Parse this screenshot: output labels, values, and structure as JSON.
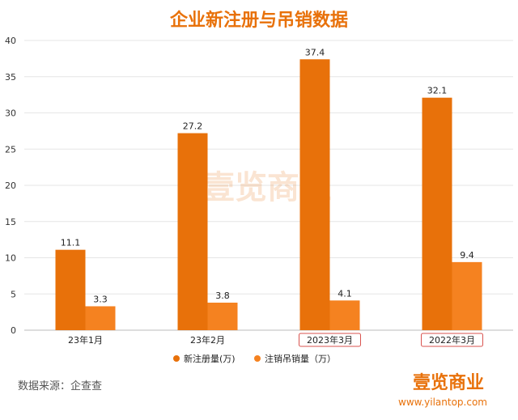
{
  "chart_data": {
    "type": "bar",
    "title": "企业新注册与吊销数据",
    "categories": [
      "23年1月",
      "23年2月",
      "2023年3月",
      "2022年3月"
    ],
    "highlighted_categories": [
      "2023年3月",
      "2022年3月"
    ],
    "series": [
      {
        "name": "新注册量(万)",
        "values": [
          11.1,
          27.2,
          37.4,
          32.1
        ],
        "color": "#E8710A"
      },
      {
        "name": "注销吊销量（万）",
        "values": [
          3.3,
          3.8,
          4.1,
          9.4
        ],
        "color": "#F58220"
      }
    ],
    "ylim": [
      0,
      40
    ],
    "yticks": [
      0,
      5,
      10,
      15,
      20,
      25,
      30,
      35,
      40
    ],
    "grid": true,
    "legend_position": "bottom-center"
  },
  "colors": {
    "title": "#E8710A",
    "brand": "#E8710A",
    "grid": "#e6e6e6",
    "highlight_border": "#d9534f"
  },
  "footer": {
    "source": "数据来源：企查查",
    "brand": "壹览商业",
    "website": "www.yilantop.com"
  },
  "watermark": "壹览商业"
}
